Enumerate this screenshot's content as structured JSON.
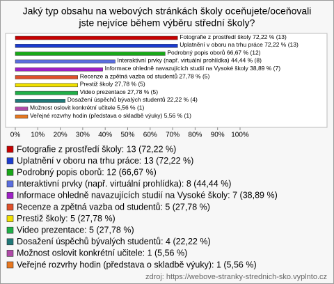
{
  "chart_data": {
    "type": "barh",
    "title": [
      "Jaký typ obsahu na webových stránkách školy oceňujete/oceňovali",
      "jste nejvíce během výběru střední školy?"
    ],
    "values": [
      72.22,
      72.22,
      66.67,
      44.44,
      38.89,
      27.78,
      27.78,
      27.78,
      22.22,
      5.56,
      5.56
    ],
    "value_labels": [
      "Fotografie z prostředí školy 72,22 % (13)",
      "Uplatnění v oboru na trhu práce 72,22 % (13)",
      "Podrobný popis oborů 66,67 % (12)",
      "Interaktivní prvky (např. virtuální prohlídka) 44,44 % (8)",
      "Informace ohledně navazujících studií na Vysoké školy 38,89 % (7)",
      "Recenze a zpětná vazba od studentů 27,78 % (5)",
      "Prestiž školy 27,78 % (5)",
      "Video prezentace 27,78 % (5)",
      "Dosažení úspěchů bývalých studentů 22,22 % (4)",
      "Možnost oslovit konkrétní učitele 5,56 % (1)",
      "Veřejné rozvrhy hodin (představa o skladbě výuky) 5,56 % (1)"
    ],
    "legend": [
      "Fotografie z prostředí školy: 13 (72,22 %)",
      "Uplatnění v oboru na trhu práce: 13 (72,22 %)",
      "Podrobný popis oborů: 12 (66,67 %)",
      "Interaktivní prvky (např. virtuální prohlídka): 8 (44,44 %)",
      "Informace ohledně navazujících studií na Vysoké školy: 7 (38,89 %)",
      "Recenze a zpětná vazba od studentů: 5 (27,78 %)",
      "Prestiž školy: 5 (27,78 %)",
      "Video prezentace: 5 (27,78 %)",
      "Dosažení úspěchů bývalých studentů: 4 (22,22 %)",
      "Možnost oslovit konkrétní učitele: 1 (5,56 %)",
      "Veřejné rozvrhy hodin (představa o skladbě výuky): 1 (5,56 %)"
    ],
    "colors": [
      "#c80000",
      "#1c3cd0",
      "#18a818",
      "#5a6ee0",
      "#a020c8",
      "#e0502a",
      "#f0e000",
      "#20b048",
      "#207878",
      "#b04aa8",
      "#e87820"
    ],
    "xlim": [
      0,
      100
    ],
    "xticks": [
      {
        "value": 0,
        "label": "0%"
      },
      {
        "value": 10,
        "label": "10%"
      },
      {
        "value": 20,
        "label": "20%"
      },
      {
        "value": 30,
        "label": "30%"
      },
      {
        "value": 40,
        "label": "40%"
      },
      {
        "value": 50,
        "label": "50%"
      },
      {
        "value": 60,
        "label": "60%"
      },
      {
        "value": 70,
        "label": "70%"
      },
      {
        "value": 80,
        "label": "80%"
      },
      {
        "value": 90,
        "label": "90%"
      },
      {
        "value": 100,
        "label": "100%"
      }
    ],
    "source": "zdroj: https://webove-stranky-strednich-sko.vyplnto.cz"
  }
}
